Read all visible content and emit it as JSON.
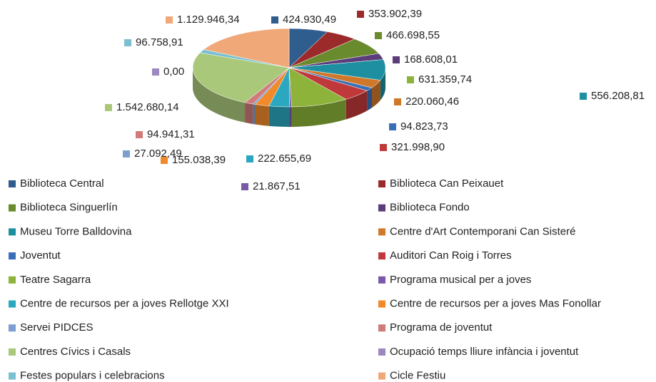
{
  "chart_data": {
    "type": "pie",
    "categories": [
      "Biblioteca Central",
      "Biblioteca Can Peixauet",
      "Biblioteca Singuerlín",
      "Biblioteca Fondo",
      "Museu Torre Balldovina",
      "Centre d'Art Contemporani Can Sisteré",
      "Joventut",
      "Auditori Can Roig i Torres",
      "Teatre Sagarra",
      "Programa musical per a joves",
      "Centre de recursos per a joves Rellotge XXI",
      "Centre de recursos per a joves Mas Fonollar",
      "Servei PIDCES",
      "Programa de joventut",
      "Centres Cívics i Casals",
      "Ocupació temps lliure infància i joventut",
      "Festes populars i celebracions",
      "Cicle Festiu"
    ],
    "values": [
      424930.49,
      353902.39,
      466698.55,
      168608.01,
      556208.81,
      220060.46,
      94823.73,
      321998.9,
      631359.74,
      21867.51,
      222655.69,
      155038.39,
      27092.49,
      94941.31,
      1542680.14,
      0.0,
      96758.91,
      1129946.34
    ],
    "value_labels": [
      "424.930,49",
      "353.902,39",
      "466.698,55",
      "168.608,01",
      "556.208,81",
      "220.060,46",
      "94.823,73",
      "321.998,90",
      "631.359,74",
      "21.867,51",
      "222.655,69",
      "155.038,39",
      "27.092,49",
      "94.941,31",
      "1.542.680,14",
      "0,00",
      "96.758,91",
      "1.129.946,34"
    ],
    "colors": [
      "#2e5d8e",
      "#9b2a2a",
      "#6a8a2e",
      "#5a3d7a",
      "#1e8fa0",
      "#d0782a",
      "#3a6fb8",
      "#c0393a",
      "#8db33a",
      "#7a5aa8",
      "#2ba8c0",
      "#f08a2a",
      "#7a9fd0",
      "#d07a7a",
      "#aac87a",
      "#9a88c0",
      "#7ac0d0",
      "#f0a878"
    ],
    "legend": "bottom"
  }
}
